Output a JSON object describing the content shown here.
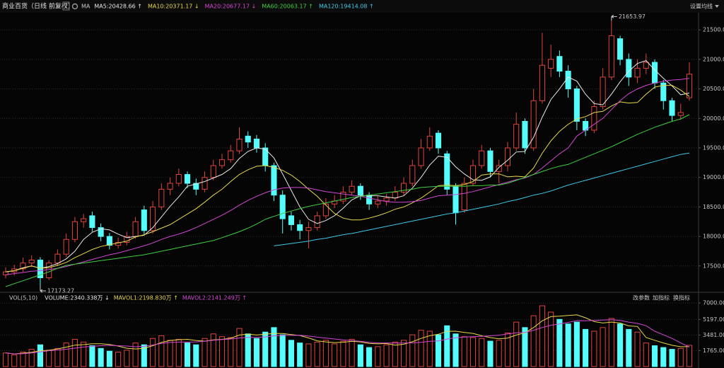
{
  "header": {
    "title": "商业百货（日线 前复权）",
    "help": "?",
    "ma": "MA",
    "settings": "设置均线",
    "buttons": [
      "改参数",
      "加指标",
      "换指标"
    ]
  },
  "chart_data": [
    {
      "type": "candlestick",
      "grid": true,
      "up_color": "#e0443c",
      "down_color": "#54fcfc",
      "ylim": [
        17090,
        21790
      ],
      "yticks": [
        {
          "value": 17500,
          "label": "17500.00"
        },
        {
          "value": 18000,
          "label": "18000.00"
        },
        {
          "value": 18500,
          "label": "18500.00"
        },
        {
          "value": 19000,
          "label": "19000.00"
        },
        {
          "value": 19500,
          "label": "19500.00"
        },
        {
          "value": 20000,
          "label": "20000.00"
        },
        {
          "value": 20500,
          "label": "20500.00"
        },
        {
          "value": 21000,
          "label": "21000.00"
        },
        {
          "value": 21500,
          "label": "21500.00"
        }
      ],
      "open": [
        17350,
        17400,
        17450,
        17550,
        17600,
        17300,
        17550,
        17700,
        17950,
        18250,
        18350,
        18150,
        18000,
        17850,
        17900,
        18000,
        18450,
        18100,
        18500,
        18800,
        18900,
        19050,
        18900,
        18800,
        19000,
        19200,
        19300,
        19450,
        19700,
        19650,
        19500,
        19200,
        18700,
        18350,
        18200,
        18100,
        18150,
        18350,
        18550,
        18600,
        18750,
        18850,
        18700,
        18550,
        18600,
        18650,
        18750,
        18900,
        19200,
        19500,
        19750,
        19400,
        18850,
        18450,
        18900,
        19200,
        19450,
        19100,
        19200,
        19500,
        19950,
        19500,
        20300,
        20850,
        21050,
        20800,
        20500,
        19950,
        19800,
        20200,
        20700,
        21350,
        21000,
        20700,
        20850,
        20950,
        20600,
        20300,
        20050,
        20350
      ],
      "high": [
        17480,
        17520,
        17640,
        17680,
        17650,
        17600,
        17780,
        18050,
        18330,
        18380,
        18420,
        18220,
        18060,
        17980,
        18080,
        18330,
        18520,
        18600,
        18900,
        19000,
        19150,
        19100,
        18980,
        19100,
        19300,
        19400,
        19550,
        19850,
        19780,
        19720,
        19580,
        19250,
        18780,
        18420,
        18280,
        18250,
        18420,
        18650,
        18700,
        18850,
        18950,
        18900,
        18750,
        18680,
        18720,
        18850,
        19000,
        19300,
        19650,
        19850,
        19800,
        19450,
        18900,
        19000,
        19300,
        19550,
        19500,
        19300,
        19600,
        20100,
        20000,
        20500,
        21450,
        21250,
        21150,
        20900,
        20550,
        20000,
        20300,
        20850,
        21653.97,
        21400,
        21100,
        21000,
        21100,
        21000,
        20650,
        20350,
        20250,
        20950
      ],
      "low": [
        17290,
        17340,
        17400,
        17480,
        17173.27,
        17260,
        17500,
        17650,
        17900,
        18150,
        18080,
        17920,
        17780,
        17800,
        17850,
        17960,
        18040,
        18050,
        18450,
        18700,
        18850,
        18820,
        18700,
        18750,
        18950,
        19150,
        19250,
        19400,
        19500,
        19420,
        19100,
        18600,
        18050,
        18100,
        17950,
        17800,
        18100,
        18300,
        18480,
        18550,
        18700,
        18620,
        18450,
        18480,
        18520,
        18600,
        18700,
        18850,
        19150,
        19450,
        19400,
        18700,
        18200,
        18400,
        18850,
        19150,
        19000,
        18900,
        19100,
        19450,
        19400,
        19450,
        20250,
        20700,
        20700,
        20350,
        19800,
        19700,
        19750,
        20150,
        20650,
        20900,
        20550,
        20600,
        20750,
        20500,
        20150,
        19950,
        19980,
        20300
      ],
      "close": [
        17400,
        17450,
        17550,
        17600,
        17300,
        17550,
        17700,
        17950,
        18250,
        18300,
        18150,
        18000,
        17850,
        17900,
        18000,
        18250,
        18100,
        18500,
        18800,
        18900,
        19050,
        18900,
        18800,
        19000,
        19200,
        19300,
        19450,
        19650,
        19600,
        19500,
        19200,
        18700,
        18300,
        18200,
        18100,
        18150,
        18350,
        18550,
        18600,
        18750,
        18850,
        18700,
        18550,
        18600,
        18650,
        18750,
        18900,
        19200,
        19500,
        19700,
        19500,
        18800,
        18400,
        18900,
        19200,
        19450,
        19100,
        19200,
        19500,
        19900,
        19500,
        20300,
        20900,
        21000,
        20800,
        20500,
        19950,
        19800,
        20200,
        20700,
        21400,
        21000,
        20700,
        20850,
        20950,
        20600,
        20300,
        20050,
        20100,
        20750
      ],
      "lines": [
        {
          "label": "MA5:20428.66 ↑",
          "color": "#e8e8e8",
          "values": [
            17400,
            17420,
            17470,
            17500,
            17460,
            17490,
            17540,
            17620,
            17750,
            17950,
            18070,
            18130,
            18110,
            18040,
            17980,
            18000,
            18020,
            18150,
            18330,
            18510,
            18670,
            18850,
            18890,
            18930,
            18990,
            19050,
            19150,
            19320,
            19440,
            19500,
            19480,
            19330,
            19060,
            18780,
            18500,
            18290,
            18220,
            18270,
            18350,
            18480,
            18620,
            18690,
            18690,
            18690,
            18670,
            18650,
            18690,
            18820,
            19000,
            19210,
            19360,
            19340,
            19180,
            19060,
            18960,
            18950,
            19010,
            19170,
            19290,
            19430,
            19440,
            19680,
            20020,
            20320,
            20500,
            20700,
            20630,
            20410,
            20250,
            20230,
            20410,
            20620,
            20800,
            20930,
            20980,
            20820,
            20680,
            20550,
            20400,
            20428.66
          ]
        },
        {
          "label": "MA10:20371.17 ↓",
          "color": "#e8d84a",
          "values": [
            17400,
            17420,
            17460,
            17500,
            17460,
            17470,
            17510,
            17560,
            17640,
            17710,
            17780,
            17830,
            17860,
            17890,
            17920,
            17990,
            18030,
            18080,
            18140,
            18200,
            18290,
            18380,
            18470,
            18580,
            18700,
            18800,
            18930,
            19050,
            19130,
            19190,
            19200,
            19170,
            19120,
            19040,
            18930,
            18800,
            18680,
            18530,
            18390,
            18310,
            18280,
            18280,
            18310,
            18350,
            18400,
            18460,
            18500,
            18570,
            18650,
            18750,
            18860,
            18870,
            18860,
            18880,
            18930,
            19040,
            19060,
            19060,
            19010,
            19020,
            19010,
            19160,
            19410,
            19620,
            19780,
            19900,
            19990,
            20030,
            20100,
            20120,
            20210,
            20280,
            20260,
            20270,
            20410,
            20530,
            20560,
            20560,
            20480,
            20371.17
          ]
        },
        {
          "label": "MA20:20677.17 ↓",
          "color": "#d347d3",
          "values": [
            17350,
            17370,
            17390,
            17410,
            17420,
            17440,
            17460,
            17490,
            17530,
            17570,
            17610,
            17650,
            17690,
            17720,
            17760,
            17800,
            17840,
            17890,
            17950,
            18000,
            18040,
            18090,
            18150,
            18220,
            18290,
            18360,
            18440,
            18530,
            18610,
            18680,
            18740,
            18790,
            18820,
            18830,
            18830,
            18820,
            18790,
            18760,
            18740,
            18720,
            18700,
            18680,
            18650,
            18620,
            18590,
            18580,
            18580,
            18590,
            18610,
            18650,
            18690,
            18700,
            18710,
            18730,
            18760,
            18800,
            18840,
            18880,
            18920,
            18960,
            18990,
            19050,
            19160,
            19280,
            19400,
            19500,
            19700,
            19800,
            19900,
            20000,
            20150,
            20300,
            20420,
            20500,
            20560,
            20600,
            20630,
            20650,
            20660,
            20677.17
          ]
        },
        {
          "label": "MA60:20063.17 ↑",
          "color": "#3fcf3f",
          "values": [
            17150,
            17200,
            17250,
            17300,
            17350,
            17400,
            17460,
            17510,
            17530,
            17550,
            17570,
            17590,
            17610,
            17630,
            17650,
            17670,
            17690,
            17720,
            17750,
            17780,
            17810,
            17840,
            17870,
            17900,
            17930,
            17980,
            18030,
            18080,
            18140,
            18210,
            18290,
            18340,
            18390,
            18430,
            18470,
            18510,
            18540,
            18570,
            18600,
            18630,
            18660,
            18680,
            18700,
            18720,
            18740,
            18760,
            18780,
            18800,
            18830,
            18840,
            18850,
            18850,
            18850,
            18850,
            18860,
            18860,
            18870,
            18870,
            18900,
            18950,
            19000,
            19050,
            19100,
            19150,
            19190,
            19220,
            19280,
            19340,
            19400,
            19460,
            19520,
            19590,
            19660,
            19730,
            19790,
            19850,
            19900,
            19950,
            19990,
            20063.17
          ]
        },
        {
          "label": "MA120:19414.08 ↑",
          "color": "#3fc8e8",
          "values": [
            null,
            null,
            null,
            null,
            null,
            null,
            null,
            null,
            null,
            null,
            null,
            null,
            null,
            null,
            null,
            null,
            null,
            null,
            null,
            null,
            null,
            null,
            null,
            null,
            null,
            null,
            null,
            null,
            null,
            null,
            null,
            17840,
            17860,
            17880,
            17900,
            17920,
            17950,
            17970,
            18000,
            18030,
            18050,
            18080,
            18110,
            18140,
            18170,
            18200,
            18230,
            18260,
            18290,
            18320,
            18350,
            18380,
            18400,
            18430,
            18460,
            18490,
            18520,
            18550,
            18590,
            18620,
            18660,
            18700,
            18730,
            18770,
            18820,
            18870,
            18910,
            18950,
            18990,
            19030,
            19070,
            19110,
            19150,
            19190,
            19230,
            19270,
            19310,
            19350,
            19390,
            19414.08
          ]
        }
      ]
    },
    {
      "type": "bar",
      "title": "VOL(5,10)",
      "grid": true,
      "ylim": [
        0,
        7250
      ],
      "yticks": [
        {
          "value": 1765,
          "label": "1765.00"
        },
        {
          "value": 3481,
          "label": "3481.00"
        },
        {
          "value": 5197,
          "label": "5197.00"
        },
        {
          "value": 7000,
          "label": "7000.00"
        }
      ],
      "series": [
        {
          "label": "VOLUME:2340.338万 ↓",
          "color": "#e8e8e8",
          "values": [
            1500,
            1300,
            1600,
            1900,
            2400,
            1800,
            2000,
            2600,
            3000,
            2700,
            2300,
            2000,
            1700,
            1600,
            1800,
            2600,
            2400,
            3100,
            3400,
            2900,
            3000,
            2600,
            2400,
            3100,
            3600,
            3300,
            3200,
            4200,
            3600,
            3100,
            3800,
            4300,
            3500,
            2900,
            2600,
            2500,
            2700,
            2900,
            2500,
            2800,
            3000,
            2400,
            2100,
            2200,
            2400,
            2700,
            2900,
            3500,
            4000,
            3900,
            3500,
            4500,
            3600,
            3300,
            3200,
            3100,
            2800,
            2900,
            3700,
            4900,
            4300,
            5600,
            6700,
            6000,
            5200,
            4700,
            4900,
            4100,
            3900,
            4300,
            5300,
            4700,
            4100,
            3800,
            2600,
            2300,
            2100,
            1900,
            2000,
            2340.338
          ]
        }
      ],
      "lines": [
        {
          "label": "MAVOL1:2198.830万 ↑",
          "color": "#e8d84a",
          "values": [
            1500,
            1400,
            1470,
            1580,
            1740,
            1800,
            1940,
            2140,
            2360,
            2420,
            2520,
            2520,
            2440,
            2260,
            2020,
            1940,
            2020,
            2300,
            2660,
            2880,
            2960,
            3000,
            2880,
            2800,
            2940,
            3000,
            3120,
            3480,
            3580,
            3480,
            3580,
            3640,
            3640,
            3520,
            3420,
            3160,
            2840,
            2720,
            2640,
            2680,
            2780,
            2720,
            2560,
            2500,
            2540,
            2360,
            2460,
            2740,
            3100,
            3400,
            3560,
            3880,
            3900,
            3760,
            3660,
            3400,
            3200,
            3060,
            3140,
            3480,
            3720,
            4300,
            5040,
            5500,
            5560,
            5640,
            5700,
            5380,
            4960,
            4800,
            4900,
            4800,
            4480,
            4420,
            3200,
            2900,
            2600,
            2350,
            2180,
            2198.83
          ]
        },
        {
          "label": "MAVOL2:2141.249万 ↑",
          "color": "#d347d3",
          "values": [
            1500,
            1400,
            1430,
            1500,
            1620,
            1750,
            1810,
            1910,
            2030,
            2150,
            2230,
            2300,
            2340,
            2300,
            2260,
            2180,
            2230,
            2380,
            2560,
            2660,
            2700,
            2700,
            2720,
            2780,
            2910,
            2980,
            3040,
            3150,
            3210,
            3210,
            3270,
            3380,
            3440,
            3440,
            3450,
            3360,
            3240,
            3140,
            3040,
            2940,
            2860,
            2780,
            2670,
            2600,
            2600,
            2580,
            2600,
            2610,
            2670,
            2780,
            2820,
            3030,
            3180,
            3260,
            3300,
            3340,
            3390,
            3460,
            3590,
            3730,
            3760,
            4010,
            4300,
            4550,
            4700,
            4870,
            5060,
            5040,
            5080,
            5120,
            5170,
            5090,
            4890,
            4760,
            4500,
            3900,
            3500,
            3100,
            2600,
            2141.249
          ]
        }
      ]
    }
  ]
}
